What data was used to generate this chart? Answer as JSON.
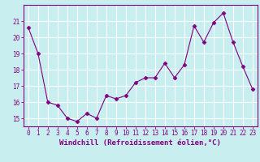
{
  "x": [
    0,
    1,
    2,
    3,
    4,
    5,
    6,
    7,
    8,
    9,
    10,
    11,
    12,
    13,
    14,
    15,
    16,
    17,
    18,
    19,
    20,
    21,
    22,
    23
  ],
  "y": [
    20.6,
    19.0,
    16.0,
    15.8,
    15.0,
    14.8,
    15.3,
    15.0,
    16.4,
    16.2,
    16.4,
    17.2,
    17.5,
    17.5,
    18.4,
    17.5,
    18.3,
    20.7,
    19.7,
    20.9,
    21.5,
    19.7,
    18.2,
    16.8
  ],
  "line_color": "#800080",
  "marker": "D",
  "marker_size": 2.5,
  "bg_color": "#c8eef0",
  "grid_color": "#ffffff",
  "xlabel": "Windchill (Refroidissement éolien,°C)",
  "ylim": [
    14.5,
    22.0
  ],
  "yticks": [
    15,
    16,
    17,
    18,
    19,
    20,
    21
  ],
  "xticks": [
    0,
    1,
    2,
    3,
    4,
    5,
    6,
    7,
    8,
    9,
    10,
    11,
    12,
    13,
    14,
    15,
    16,
    17,
    18,
    19,
    20,
    21,
    22,
    23
  ],
  "tick_fontsize": 5.5,
  "xlabel_fontsize": 6.5
}
